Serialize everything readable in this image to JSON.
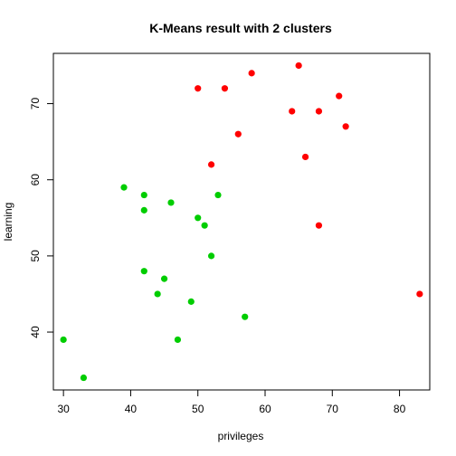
{
  "chart_data": {
    "type": "scatter",
    "title": "K-Means result with 2 clusters",
    "xlabel": "privileges",
    "ylabel": "learning",
    "xlim": [
      28.5,
      84.5
    ],
    "ylim": [
      32.4,
      76.6
    ],
    "xticks": [
      30,
      40,
      50,
      60,
      70,
      80
    ],
    "yticks": [
      40,
      50,
      60,
      70
    ],
    "grid": false,
    "legend": "none",
    "series": [
      {
        "color": "#ff0000",
        "points": [
          [
            65,
            75
          ],
          [
            58,
            74
          ],
          [
            50,
            72
          ],
          [
            54,
            72
          ],
          [
            71,
            71
          ],
          [
            64,
            69
          ],
          [
            68,
            69
          ],
          [
            72,
            67
          ],
          [
            56,
            66
          ],
          [
            66,
            63
          ],
          [
            52,
            62
          ],
          [
            68,
            54
          ],
          [
            83,
            45
          ]
        ]
      },
      {
        "color": "#00cd00",
        "points": [
          [
            39,
            59
          ],
          [
            42,
            58
          ],
          [
            53,
            58
          ],
          [
            46,
            57
          ],
          [
            42,
            56
          ],
          [
            50,
            55
          ],
          [
            51,
            54
          ],
          [
            52,
            50
          ],
          [
            42,
            48
          ],
          [
            45,
            47
          ],
          [
            44,
            45
          ],
          [
            49,
            44
          ],
          [
            57,
            42
          ],
          [
            30,
            39
          ],
          [
            47,
            39
          ],
          [
            33,
            34
          ]
        ]
      }
    ]
  }
}
